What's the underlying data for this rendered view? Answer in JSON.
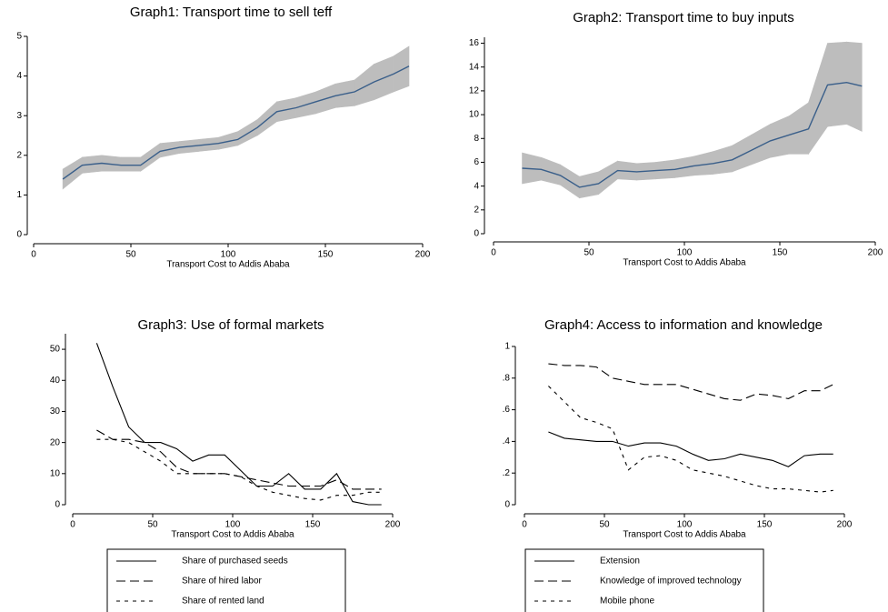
{
  "chart_data": [
    {
      "type": "line_ci",
      "title": "Graph1: Transport time to sell teff",
      "x_label": "Transport Cost to Addis Ababa",
      "x": [
        15,
        25,
        35,
        45,
        55,
        65,
        75,
        85,
        95,
        105,
        115,
        125,
        135,
        145,
        155,
        165,
        175,
        185,
        193
      ],
      "series": [
        {
          "color": "#3a5f8a",
          "band_color": "#bdbdbd",
          "linestyle": "solid",
          "values": [
            1.4,
            1.75,
            1.8,
            1.75,
            1.75,
            2.1,
            2.2,
            2.25,
            2.3,
            2.4,
            2.7,
            3.1,
            3.2,
            3.35,
            3.5,
            3.6,
            3.85,
            4.05,
            4.25
          ],
          "ci_lower": [
            1.15,
            1.55,
            1.6,
            1.6,
            1.6,
            1.95,
            2.05,
            2.1,
            2.15,
            2.25,
            2.5,
            2.85,
            2.95,
            3.05,
            3.2,
            3.25,
            3.4,
            3.6,
            3.75
          ],
          "ci_upper": [
            1.65,
            1.95,
            2.0,
            1.95,
            1.95,
            2.3,
            2.35,
            2.4,
            2.45,
            2.6,
            2.9,
            3.35,
            3.45,
            3.6,
            3.8,
            3.9,
            4.3,
            4.5,
            4.75
          ]
        }
      ],
      "xlim": [
        0,
        200
      ],
      "xticks": [
        0,
        50,
        100,
        150,
        200
      ],
      "ylim": [
        0,
        5
      ],
      "yticks": [
        0,
        1,
        2,
        3,
        4,
        5
      ]
    },
    {
      "type": "line_ci",
      "title": "Graph2: Transport time to buy inputs",
      "x_label": "Transport Cost to Addis Ababa",
      "x": [
        15,
        25,
        35,
        45,
        55,
        65,
        75,
        85,
        95,
        105,
        115,
        125,
        135,
        145,
        155,
        165,
        175,
        185,
        193
      ],
      "series": [
        {
          "color": "#3a5f8a",
          "band_color": "#bdbdbd",
          "linestyle": "solid",
          "values": [
            5.5,
            5.4,
            4.9,
            3.9,
            4.2,
            5.3,
            5.2,
            5.3,
            5.4,
            5.7,
            5.9,
            6.2,
            7.0,
            7.8,
            8.3,
            8.8,
            12.5,
            12.7,
            12.4
          ],
          "ci_lower": [
            4.2,
            4.5,
            4.1,
            3.0,
            3.3,
            4.6,
            4.5,
            4.6,
            4.7,
            4.9,
            5.0,
            5.2,
            5.8,
            6.4,
            6.7,
            6.7,
            9.0,
            9.2,
            8.6
          ],
          "ci_upper": [
            6.8,
            6.4,
            5.8,
            4.8,
            5.2,
            6.1,
            5.9,
            6.0,
            6.2,
            6.5,
            6.9,
            7.4,
            8.3,
            9.2,
            9.9,
            11.0,
            16.0,
            16.1,
            16.0
          ]
        }
      ],
      "xlim": [
        0,
        200
      ],
      "xticks": [
        0,
        50,
        100,
        150,
        200
      ],
      "ylim": [
        0,
        16.5
      ],
      "yticks": [
        0,
        2,
        4,
        6,
        8,
        10,
        12,
        14,
        16
      ]
    },
    {
      "type": "line",
      "title": "Graph3: Use of formal markets",
      "x_label": "Transport Cost to Addis Ababa",
      "x": [
        15,
        25,
        35,
        45,
        55,
        65,
        75,
        85,
        95,
        105,
        115,
        125,
        135,
        145,
        155,
        165,
        175,
        185,
        193
      ],
      "series": [
        {
          "name": "Share of purchased seeds",
          "color": "#000000",
          "linestyle": "solid",
          "values": [
            52,
            38,
            25,
            20,
            20,
            18,
            14,
            16,
            16,
            11,
            6,
            6,
            10,
            5,
            5,
            10,
            1,
            0,
            0
          ]
        },
        {
          "name": "Share of hired labor",
          "color": "#000000",
          "linestyle": "longdash",
          "values": [
            24,
            21,
            21,
            20,
            17,
            12,
            10,
            10,
            10,
            9,
            8,
            7,
            6,
            6,
            6,
            8,
            5,
            5,
            5
          ]
        },
        {
          "name": "Share of rented land",
          "color": "#000000",
          "linestyle": "shortdash",
          "values": [
            21,
            21,
            20,
            17,
            14,
            10,
            10,
            10,
            10,
            9,
            6,
            4,
            3,
            2,
            1.5,
            3,
            3,
            4,
            4
          ]
        }
      ],
      "xlim": [
        0,
        200
      ],
      "xticks": [
        0,
        50,
        100,
        150,
        200
      ],
      "ylim": [
        0,
        55
      ],
      "yticks": [
        0,
        10,
        20,
        30,
        40,
        50
      ],
      "legend": "below"
    },
    {
      "type": "line",
      "title": "Graph4: Access to information and knowledge",
      "x_label": "Transport Cost to Addis Ababa",
      "x": [
        15,
        25,
        35,
        45,
        55,
        65,
        75,
        85,
        95,
        105,
        115,
        125,
        135,
        145,
        155,
        165,
        175,
        185,
        193
      ],
      "series": [
        {
          "name": "Extension",
          "color": "#000000",
          "linestyle": "solid",
          "values": [
            0.46,
            0.42,
            0.41,
            0.4,
            0.4,
            0.37,
            0.39,
            0.39,
            0.37,
            0.32,
            0.28,
            0.29,
            0.32,
            0.3,
            0.28,
            0.24,
            0.31,
            0.32,
            0.32
          ]
        },
        {
          "name": "Knowledge of improved technology",
          "color": "#000000",
          "linestyle": "longdash",
          "values": [
            0.89,
            0.88,
            0.88,
            0.87,
            0.8,
            0.78,
            0.76,
            0.76,
            0.76,
            0.73,
            0.7,
            0.67,
            0.66,
            0.7,
            0.69,
            0.67,
            0.72,
            0.72,
            0.76
          ]
        },
        {
          "name": "Mobile phone",
          "color": "#000000",
          "linestyle": "shortdash",
          "values": [
            0.75,
            0.65,
            0.55,
            0.52,
            0.48,
            0.22,
            0.3,
            0.31,
            0.28,
            0.22,
            0.2,
            0.18,
            0.15,
            0.12,
            0.1,
            0.1,
            0.09,
            0.08,
            0.09
          ]
        }
      ],
      "xlim": [
        0,
        200
      ],
      "xticks": [
        0,
        50,
        100,
        150,
        200
      ],
      "ylim": [
        0,
        1
      ],
      "yticks": [
        0,
        {
          "value": 0.2,
          "label": ".2"
        },
        {
          "value": 0.4,
          "label": ".4"
        },
        {
          "value": 0.6,
          "label": ".6"
        },
        {
          "value": 0.8,
          "label": ".8"
        },
        1
      ],
      "legend": "below"
    }
  ]
}
